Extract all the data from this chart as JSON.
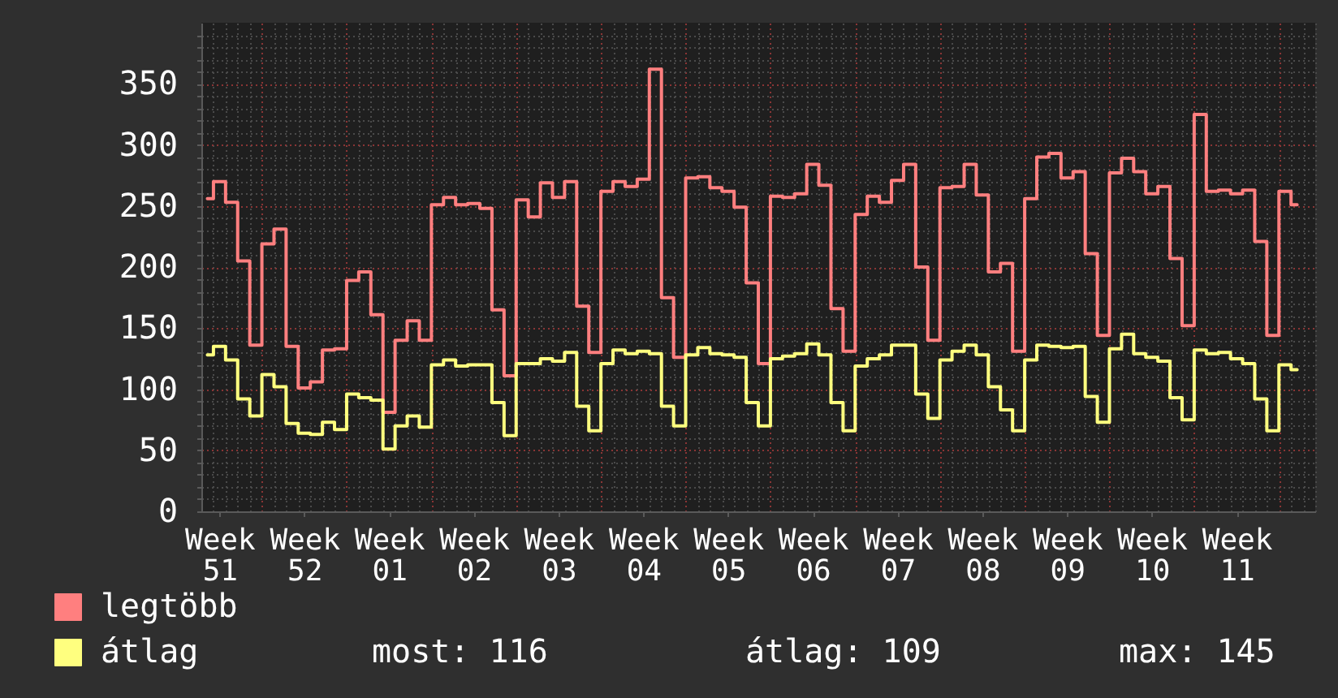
{
  "chart_data": {
    "type": "step",
    "categories": [
      null,
      "Week 51",
      null,
      null,
      null,
      null,
      null,
      null,
      "Week 52",
      null,
      null,
      null,
      null,
      null,
      null,
      "Week 01",
      null,
      null,
      null,
      null,
      null,
      null,
      "Week 02",
      null,
      null,
      null,
      null,
      null,
      null,
      "Week 03",
      null,
      null,
      null,
      null,
      null,
      null,
      "Week 04",
      null,
      null,
      null,
      null,
      null,
      null,
      "Week 05",
      null,
      null,
      null,
      null,
      null,
      null,
      "Week 06",
      null,
      null,
      null,
      null,
      null,
      null,
      "Week 07",
      null,
      null,
      null,
      null,
      null,
      null,
      "Week 08",
      null,
      null,
      null,
      null,
      null,
      null,
      "Week 09",
      null,
      null,
      null,
      null,
      null,
      null,
      "Week 10",
      null,
      null,
      null,
      null,
      null,
      null,
      "Week 11",
      null,
      null,
      null,
      null,
      null,
      null
    ],
    "series": [
      {
        "name": "legtöbb",
        "color": "#ff7f7f",
        "values": [
          256,
          270,
          253,
          205,
          136,
          219,
          231,
          135,
          101,
          106,
          132,
          133,
          189,
          196,
          161,
          81,
          140,
          156,
          140,
          251,
          257,
          251,
          252,
          248,
          165,
          111,
          255,
          241,
          269,
          257,
          270,
          168,
          130,
          262,
          270,
          266,
          272,
          362,
          175,
          126,
          273,
          274,
          265,
          262,
          249,
          187,
          121,
          258,
          257,
          260,
          284,
          267,
          166,
          131,
          243,
          258,
          253,
          271,
          284,
          200,
          140,
          265,
          266,
          284,
          259,
          196,
          203,
          131,
          256,
          290,
          293,
          273,
          278,
          211,
          144,
          277,
          289,
          278,
          260,
          266,
          207,
          152,
          325,
          262,
          263,
          260,
          263,
          221,
          144,
          262,
          251,
          null
        ]
      },
      {
        "name": "átlag",
        "color": "#ffff7f",
        "values": [
          128,
          135,
          124,
          92,
          78,
          112,
          102,
          72,
          64,
          63,
          73,
          67,
          96,
          93,
          91,
          51,
          70,
          78,
          69,
          120,
          124,
          119,
          120,
          120,
          89,
          62,
          121,
          121,
          125,
          123,
          130,
          86,
          66,
          121,
          132,
          129,
          131,
          129,
          86,
          70,
          128,
          134,
          129,
          128,
          126,
          89,
          70,
          125,
          127,
          129,
          137,
          128,
          89,
          66,
          119,
          125,
          128,
          136,
          136,
          96,
          76,
          124,
          131,
          136,
          128,
          102,
          83,
          66,
          124,
          136,
          135,
          134,
          135,
          94,
          73,
          133,
          145,
          129,
          126,
          123,
          93,
          75,
          132,
          129,
          130,
          125,
          121,
          92,
          66,
          120,
          116,
          null
        ]
      }
    ],
    "ylim": [
      0,
      400
    ],
    "yticks": [
      0,
      {
        "value": 10,
        "label": null
      },
      {
        "value": 20,
        "label": null
      },
      {
        "value": 30,
        "label": null
      },
      {
        "value": 40,
        "label": null
      },
      50,
      {
        "value": 60,
        "label": null
      },
      {
        "value": 70,
        "label": null
      },
      {
        "value": 80,
        "label": null
      },
      {
        "value": 90,
        "label": null
      },
      100,
      {
        "value": 110,
        "label": null
      },
      {
        "value": 120,
        "label": null
      },
      {
        "value": 130,
        "label": null
      },
      {
        "value": 140,
        "label": null
      },
      150,
      {
        "value": 160,
        "label": null
      },
      {
        "value": 170,
        "label": null
      },
      {
        "value": 180,
        "label": null
      },
      {
        "value": 190,
        "label": null
      },
      200,
      {
        "value": 210,
        "label": null
      },
      {
        "value": 220,
        "label": null
      },
      {
        "value": 230,
        "label": null
      },
      {
        "value": 240,
        "label": null
      },
      250,
      {
        "value": 260,
        "label": null
      },
      {
        "value": 270,
        "label": null
      },
      {
        "value": 280,
        "label": null
      },
      {
        "value": 290,
        "label": null
      },
      300,
      {
        "value": 310,
        "label": null
      },
      {
        "value": 320,
        "label": null
      },
      {
        "value": 330,
        "label": null
      },
      {
        "value": 340,
        "label": null
      },
      350,
      {
        "value": 360,
        "label": null
      },
      {
        "value": 370,
        "label": null
      },
      {
        "value": 380,
        "label": null
      },
      {
        "value": 390,
        "label": null
      }
    ],
    "grid": true,
    "legend": "bottom left",
    "annotations": [
      "most: 116",
      "átlag: 109",
      "max: 145"
    ]
  }
}
